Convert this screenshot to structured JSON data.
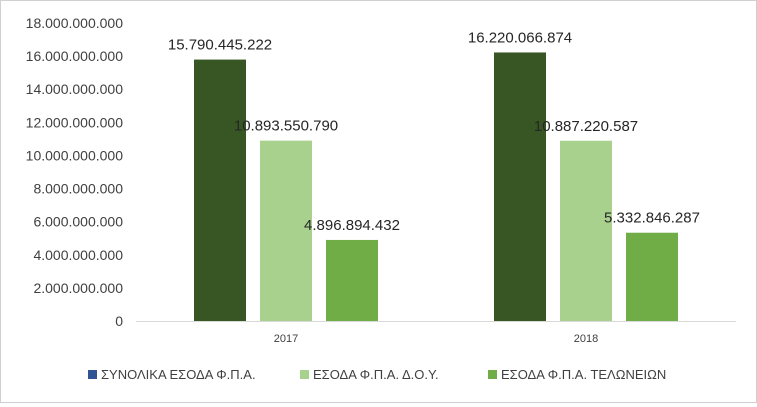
{
  "chart_data": {
    "type": "bar",
    "categories": [
      "2017",
      "2018"
    ],
    "series": [
      {
        "name": "ΣΥΝΟΛΙΚΑ ΕΣΟΔΑ Φ.Π.Α.",
        "color": "#375623",
        "legend_color": "#2f5597",
        "values": [
          15790445222,
          16220066874
        ],
        "labels": [
          "15.790.445.222",
          "16.220.066.874"
        ]
      },
      {
        "name": "ΕΣΟΔΑ Φ.Π.Α. Δ.Ο.Υ.",
        "color": "#a9d18e",
        "legend_color": "#a9d18e",
        "values": [
          10893550790,
          10887220587
        ],
        "labels": [
          "10.893.550.790",
          "10.887.220.587"
        ]
      },
      {
        "name": "ΕΣΟΔΑ Φ.Π.Α. ΤΕΛΩΝΕΙΩΝ",
        "color": "#70ad47",
        "legend_color": "#70ad47",
        "values": [
          4896894432,
          5332846287
        ],
        "labels": [
          "4.896.894.432",
          "5.332.846.287"
        ]
      }
    ],
    "yticks": [
      0,
      2000000000,
      4000000000,
      6000000000,
      8000000000,
      10000000000,
      12000000000,
      14000000000,
      16000000000,
      18000000000
    ],
    "ytick_labels": [
      "0",
      "2.000.000.000",
      "4.000.000.000",
      "6.000.000.000",
      "8.000.000.000",
      "10.000.000.000",
      "12.000.000.000",
      "14.000.000.000",
      "16.000.000.000",
      "18.000.000.000"
    ],
    "ylim": [
      0,
      18000000000
    ],
    "grid": false,
    "legend_position": "bottom",
    "title": "",
    "xlabel": "",
    "ylabel": ""
  }
}
